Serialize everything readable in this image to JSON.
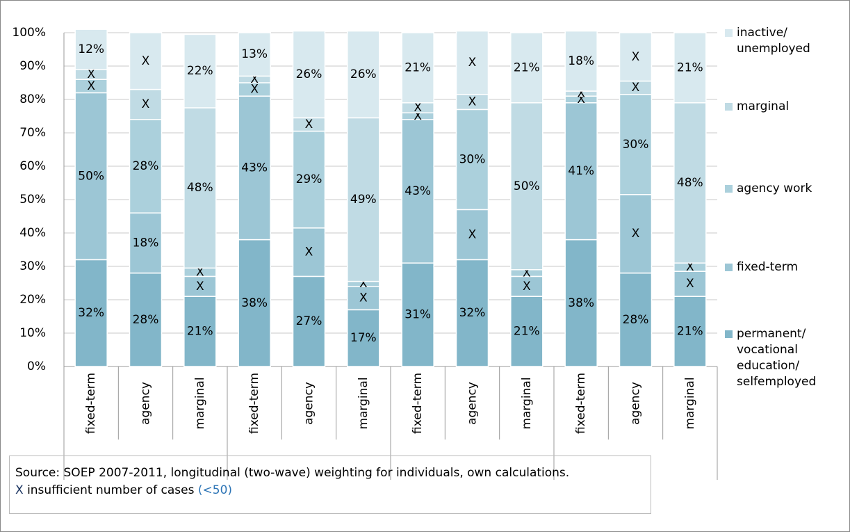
{
  "chart_data": {
    "type": "stacked-bar",
    "categories": [
      "fixed-term",
      "agency",
      "marginal",
      "fixed-term",
      "agency",
      "marginal",
      "fixed-term",
      "agency",
      "marginal",
      "fixed-term",
      "agency",
      "marginal"
    ],
    "series": [
      {
        "name": "permanent/ vocational education/ selfemployed",
        "color": "#82b6c9",
        "values": [
          32,
          28,
          21,
          38,
          27,
          17,
          31,
          32,
          21,
          38,
          28,
          21
        ],
        "value_labels": [
          "32%",
          "28%",
          "21%",
          "38%",
          "27%",
          "17%",
          "31%",
          "32%",
          "21%",
          "38%",
          "28%",
          "21%"
        ]
      },
      {
        "name": "fixed-term",
        "color": "#9cc6d5",
        "values": [
          50,
          18,
          6,
          43,
          14.5,
          7,
          43,
          15,
          6,
          41,
          23.5,
          7.5
        ],
        "value_labels": [
          "50%",
          "18%",
          "X",
          "43%",
          "X",
          "X",
          "43%",
          "X",
          "X",
          "41%",
          "X",
          "X"
        ]
      },
      {
        "name": "agency work",
        "color": "#abd0dc",
        "values": [
          4,
          28,
          2.5,
          4,
          29,
          1.5,
          2,
          30,
          2,
          2,
          30,
          2.5
        ],
        "value_labels": [
          "X",
          "28%",
          "X",
          "X",
          "29%",
          "X",
          "X",
          "30%",
          "X",
          "X",
          "30%",
          "X"
        ]
      },
      {
        "name": "marginal",
        "color": "#c0dbe4",
        "values": [
          3,
          9,
          48,
          2,
          4,
          49,
          3,
          4.5,
          50,
          1.5,
          4,
          48
        ],
        "value_labels": [
          "X",
          "X",
          "48%",
          "X",
          "X",
          "49%",
          "X",
          "X",
          "50%",
          "X",
          "X",
          "48%"
        ]
      },
      {
        "name": "inactive/ unemployed",
        "color": "#d8e9ef",
        "values": [
          12,
          17,
          22,
          13,
          26,
          26,
          21,
          19,
          21,
          18,
          14.5,
          21
        ],
        "value_labels": [
          "12%",
          "X",
          "22%",
          "13%",
          "26%",
          "26%",
          "21%",
          "X",
          "21%",
          "18%",
          "X",
          "21%"
        ]
      }
    ],
    "ylim": [
      0,
      100
    ],
    "yticks": [
      {
        "value": 0,
        "label": "0%"
      },
      {
        "value": 10,
        "label": "10%"
      },
      {
        "value": 20,
        "label": "20%"
      },
      {
        "value": 30,
        "label": "30%"
      },
      {
        "value": 40,
        "label": "40%"
      },
      {
        "value": 50,
        "label": "50%"
      },
      {
        "value": 60,
        "label": "60%"
      },
      {
        "value": 70,
        "label": "70%"
      },
      {
        "value": 80,
        "label": "80%"
      },
      {
        "value": 90,
        "label": "90%"
      },
      {
        "value": 100,
        "label": "100%"
      }
    ],
    "grid": true,
    "legend": "right",
    "footnote": {
      "source": "Source: SOEP 2007-2011, longitudinal (two-wave) weighting for individuals, own calculations.",
      "marker": "X",
      "text": "insufficient number of cases",
      "cases": "(<50)"
    }
  }
}
